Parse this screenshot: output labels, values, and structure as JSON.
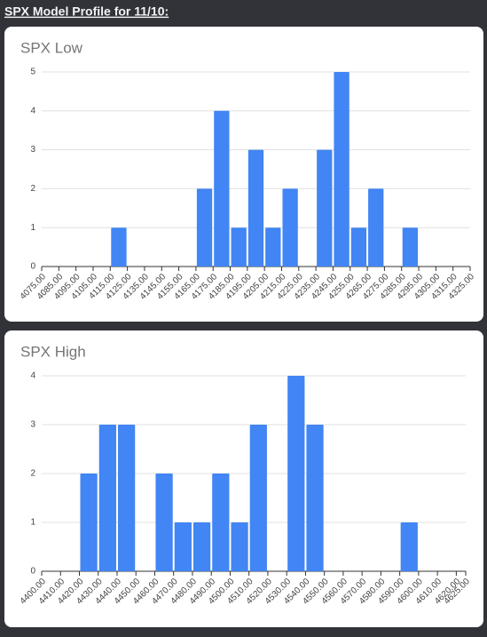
{
  "heading": "SPX Model Profile for 11/10:",
  "chart_data": [
    {
      "type": "histogram",
      "title": "SPX Low",
      "color": "#4285f4",
      "grid": true,
      "bins": [
        4075,
        4085,
        4095,
        4105,
        4115,
        4125,
        4135,
        4145,
        4155,
        4165,
        4175,
        4185,
        4195,
        4205,
        4215,
        4225,
        4235,
        4245,
        4255,
        4265,
        4275,
        4285,
        4295,
        4305,
        4315,
        4325
      ],
      "values": [
        0,
        0,
        0,
        0,
        1,
        0,
        0,
        0,
        0,
        2,
        4,
        1,
        3,
        1,
        2,
        0,
        3,
        5,
        1,
        2,
        0,
        1,
        0,
        0,
        0
      ],
      "xlim": [
        4075,
        4325
      ],
      "xticks": [
        {
          "value": 4075,
          "label": "4075.00"
        },
        {
          "value": 4085,
          "label": "4085.00"
        },
        {
          "value": 4095,
          "label": "4095.00"
        },
        {
          "value": 4105,
          "label": "4105.00"
        },
        {
          "value": 4115,
          "label": "4115.00"
        },
        {
          "value": 4125,
          "label": "4125.00"
        },
        {
          "value": 4135,
          "label": "4135.00"
        },
        {
          "value": 4145,
          "label": "4145.00"
        },
        {
          "value": 4155,
          "label": "4155.00"
        },
        {
          "value": 4165,
          "label": "4165.00"
        },
        {
          "value": 4175,
          "label": "4175.00"
        },
        {
          "value": 4185,
          "label": "4185.00"
        },
        {
          "value": 4195,
          "label": "4195.00"
        },
        {
          "value": 4205,
          "label": "4205.00"
        },
        {
          "value": 4215,
          "label": "4215.00"
        },
        {
          "value": 4225,
          "label": "4225.00"
        },
        {
          "value": 4235,
          "label": "4235.00"
        },
        {
          "value": 4245,
          "label": "4245.00"
        },
        {
          "value": 4255,
          "label": "4255.00"
        },
        {
          "value": 4265,
          "label": "4265.00"
        },
        {
          "value": 4275,
          "label": "4275.00"
        },
        {
          "value": 4285,
          "label": "4285.00"
        },
        {
          "value": 4295,
          "label": "4295.00"
        },
        {
          "value": 4305,
          "label": "4305.00"
        },
        {
          "value": 4315,
          "label": "4315.00"
        },
        {
          "value": 4325,
          "label": "4325.00"
        }
      ],
      "ylim": [
        0,
        5
      ],
      "yticks": [
        0,
        1,
        2,
        3,
        4,
        5
      ]
    },
    {
      "type": "histogram",
      "title": "SPX High",
      "color": "#4285f4",
      "grid": true,
      "bins": [
        4400,
        4410,
        4420,
        4430,
        4440,
        4450,
        4460,
        4470,
        4480,
        4490,
        4500,
        4510,
        4520,
        4530,
        4540,
        4550,
        4560,
        4570,
        4580,
        4590,
        4600,
        4610,
        4620,
        4625
      ],
      "values": [
        0,
        0,
        2,
        3,
        3,
        0,
        2,
        1,
        1,
        2,
        1,
        3,
        0,
        4,
        3,
        0,
        0,
        0,
        0,
        1,
        0,
        0,
        0
      ],
      "xlim": [
        4400,
        4625
      ],
      "xticks": [
        {
          "value": 4400,
          "label": "4400.00"
        },
        {
          "value": 4410,
          "label": "4410.00"
        },
        {
          "value": 4420,
          "label": "4420.00"
        },
        {
          "value": 4430,
          "label": "4430.00"
        },
        {
          "value": 4440,
          "label": "4440.00"
        },
        {
          "value": 4450,
          "label": "4450.00"
        },
        {
          "value": 4460,
          "label": "4460.00"
        },
        {
          "value": 4470,
          "label": "4470.00"
        },
        {
          "value": 4480,
          "label": "4480.00"
        },
        {
          "value": 4490,
          "label": "4490.00"
        },
        {
          "value": 4500,
          "label": "4500.00"
        },
        {
          "value": 4510,
          "label": "4510.00"
        },
        {
          "value": 4520,
          "label": "4520.00"
        },
        {
          "value": 4530,
          "label": "4530.00"
        },
        {
          "value": 4540,
          "label": "4540.00"
        },
        {
          "value": 4550,
          "label": "4550.00"
        },
        {
          "value": 4560,
          "label": "4560.00"
        },
        {
          "value": 4570,
          "label": "4570.00"
        },
        {
          "value": 4580,
          "label": "4580.00"
        },
        {
          "value": 4590,
          "label": "4590.00"
        },
        {
          "value": 4600,
          "label": "4600.00"
        },
        {
          "value": 4610,
          "label": "4610.00"
        },
        {
          "value": 4620,
          "label": "4620.00"
        },
        {
          "value": 4625,
          "label": "4625.00"
        }
      ],
      "ylim": [
        0,
        4
      ],
      "yticks": [
        0,
        1,
        2,
        3,
        4
      ]
    }
  ]
}
